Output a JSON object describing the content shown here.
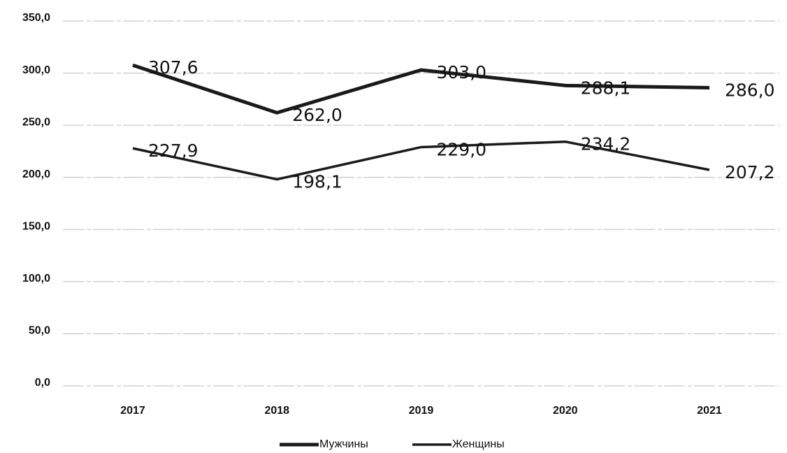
{
  "chart_data": {
    "type": "line",
    "categories": [
      "2017",
      "2018",
      "2019",
      "2020",
      "2021"
    ],
    "series": [
      {
        "name": "Мужчины",
        "color": "#1a1a1a",
        "values": [
          307.6,
          262.0,
          303.0,
          288.1,
          286.0
        ],
        "value_labels": [
          "307,6",
          "262,0",
          "303,0",
          "288,1",
          "286,0"
        ]
      },
      {
        "name": "Женщины",
        "color": "#1a1a1a",
        "values": [
          227.9,
          198.1,
          229.0,
          234.2,
          207.2
        ],
        "value_labels": [
          "227,9",
          "198,1",
          "229,0",
          "234,2",
          "207,2"
        ]
      }
    ],
    "ylim": [
      0,
      350
    ],
    "yticks": [
      {
        "value": 0,
        "label": "0,0"
      },
      {
        "value": 50,
        "label": "50,0"
      },
      {
        "value": 100,
        "label": "100,0"
      },
      {
        "value": 150,
        "label": "150,0"
      },
      {
        "value": 200,
        "label": "200,0"
      },
      {
        "value": 250,
        "label": "250,0"
      },
      {
        "value": 300,
        "label": "300,0"
      },
      {
        "value": 350,
        "label": "350,0"
      }
    ],
    "grid": true,
    "legend": "bottom"
  }
}
